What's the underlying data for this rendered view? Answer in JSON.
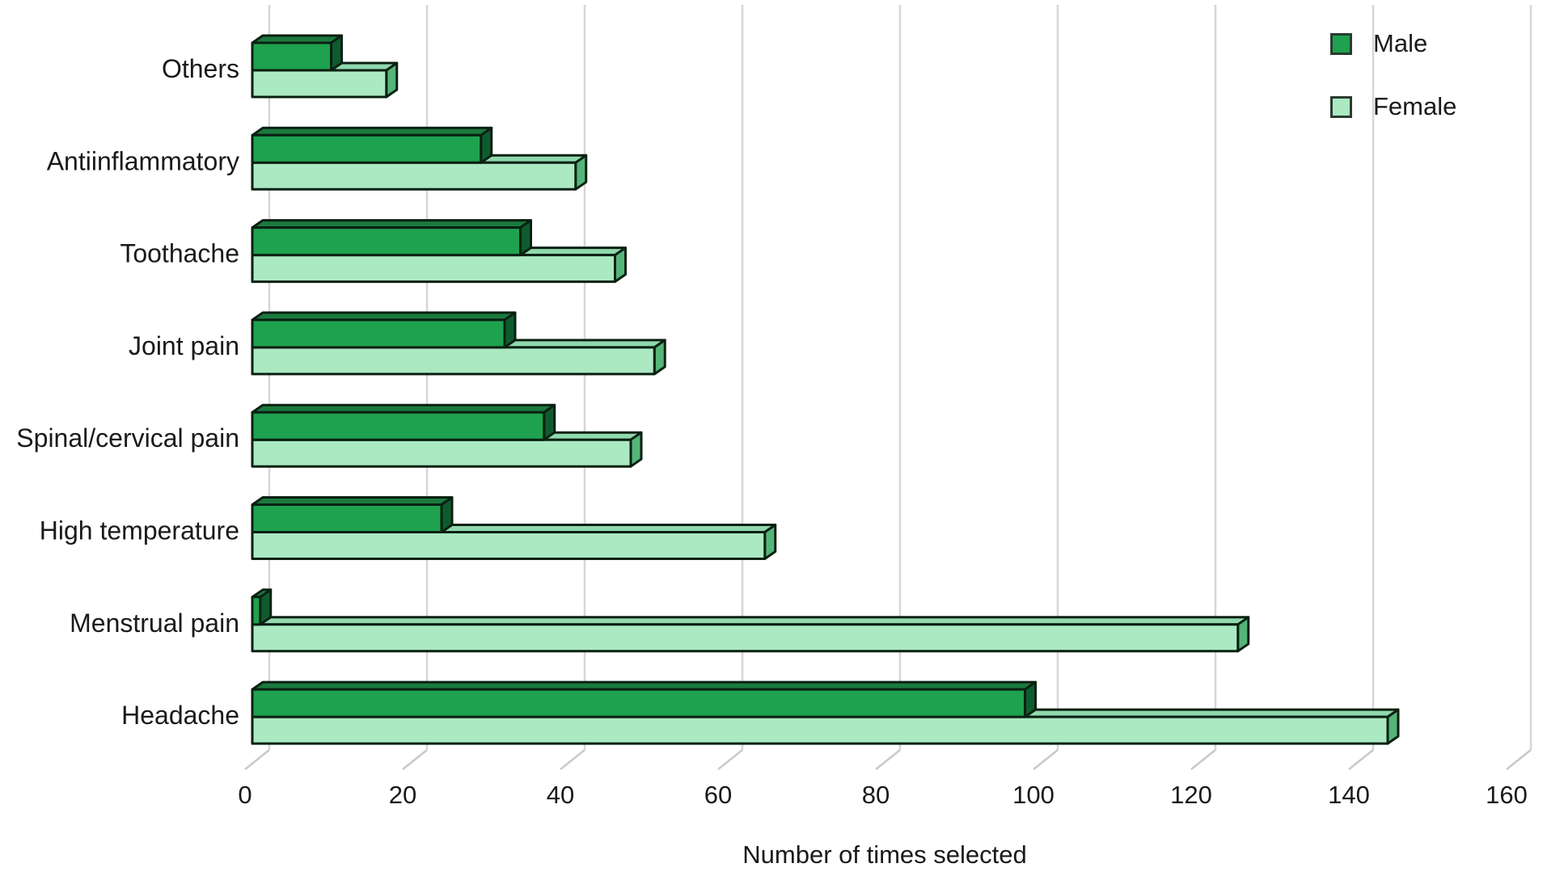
{
  "chart_data": {
    "type": "bar",
    "orientation": "horizontal",
    "style": "3d-extruded",
    "xlabel": "Number of times selected",
    "xlim": [
      0,
      160
    ],
    "xticks": [
      0,
      20,
      40,
      60,
      80,
      100,
      120,
      140,
      160
    ],
    "grid": true,
    "legend_position": "top-right",
    "categories": [
      "Others",
      "Antiinflammatory",
      "Toothache",
      "Joint pain",
      "Spinal/cervical pain",
      "High temperature",
      "Menstrual pain",
      "Headache"
    ],
    "series": [
      {
        "name": "Male",
        "color": "#1ea24f",
        "values": [
          10,
          29,
          34,
          32,
          37,
          24,
          1,
          98
        ]
      },
      {
        "name": "Female",
        "color": "#abe9c3",
        "values": [
          17,
          41,
          46,
          51,
          48,
          65,
          125,
          144
        ]
      }
    ]
  },
  "legend": {
    "male_label": "Male",
    "female_label": "Female"
  },
  "axis": {
    "xlabel": "Number of times selected"
  },
  "colors": {
    "male_front": "#1ea24f",
    "male_top": "#1b7a3e",
    "male_side": "#0e5c2e",
    "female_front": "#abe9c3",
    "female_top": "#8fd9ad",
    "female_side": "#55b578",
    "outline": "#0b2012",
    "gridline": "#d6d6d6",
    "tick": "#c9c9c9",
    "text": "#1a1a1a"
  }
}
